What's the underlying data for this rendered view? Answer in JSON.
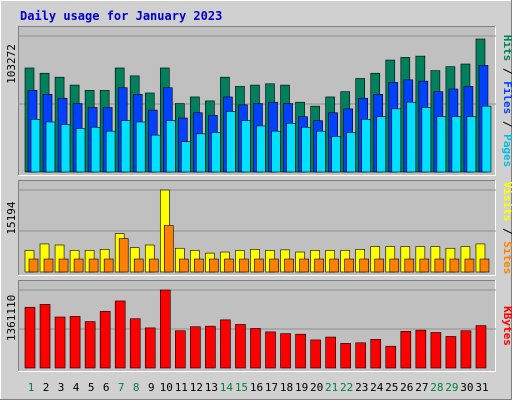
{
  "title": "Daily usage for January 2023",
  "colors": {
    "background": "#d0d0d0",
    "panel": "#c0c0c0",
    "hits": "#00805c",
    "files": "#0040ff",
    "pages": "#00e0ff",
    "visits": "#ffff00",
    "sites": "#ff8000",
    "kbytes": "#ff0000",
    "title": "#0000cc",
    "weekday": "#008040"
  },
  "chart_data": [
    {
      "type": "bar",
      "name": "hits-files-pages",
      "ymax_label": "103272",
      "ymax": 103272,
      "right_label_parts": [
        {
          "text": "Pages",
          "color": "#00c0e0"
        },
        {
          "text": " / ",
          "color": "#000000"
        },
        {
          "text": "Files",
          "color": "#0040ff"
        },
        {
          "text": " / ",
          "color": "#000000"
        },
        {
          "text": "Hits",
          "color": "#00805c"
        }
      ],
      "series": [
        {
          "key": "hits",
          "values": [
            79000,
            75000,
            72000,
            66000,
            62000,
            62000,
            79000,
            73000,
            60000,
            79000,
            52000,
            57000,
            54000,
            72000,
            65000,
            66000,
            67000,
            66000,
            53000,
            50000,
            57000,
            61000,
            71000,
            75000,
            85000,
            87000,
            88000,
            77000,
            80000,
            82000,
            101000
          ]
        },
        {
          "key": "files",
          "values": [
            62000,
            59000,
            56000,
            52000,
            49000,
            49000,
            64000,
            59000,
            47000,
            64000,
            41000,
            45000,
            43000,
            57000,
            51000,
            52000,
            53000,
            52000,
            42000,
            39000,
            45000,
            48000,
            56000,
            59000,
            68000,
            70000,
            69000,
            61000,
            63000,
            65000,
            81000
          ]
        },
        {
          "key": "pages",
          "values": [
            40000,
            38000,
            36000,
            33000,
            34000,
            31000,
            39000,
            38000,
            28000,
            39000,
            23000,
            29000,
            30000,
            46000,
            39000,
            35000,
            31000,
            37000,
            34000,
            31000,
            27000,
            30000,
            40000,
            42000,
            48000,
            53000,
            49000,
            42000,
            42000,
            42000,
            50000
          ]
        }
      ]
    },
    {
      "type": "bar",
      "name": "visits-sites",
      "ymax_label": "15194",
      "ymax": 15194,
      "right_label_parts": [
        {
          "text": "Sites",
          "color": "#ff8000"
        },
        {
          "text": " / ",
          "color": "#000000"
        },
        {
          "text": "Visits",
          "color": "#ffff00"
        }
      ],
      "series": [
        {
          "key": "visits",
          "values": [
            4000,
            5200,
            5000,
            4000,
            4000,
            4200,
            7100,
            4500,
            5000,
            15194,
            4400,
            4000,
            3500,
            3700,
            4000,
            4200,
            4000,
            4100,
            3700,
            4000,
            4000,
            4000,
            4200,
            4700,
            4700,
            4700,
            4700,
            4700,
            4400,
            4700,
            5200
          ]
        },
        {
          "key": "sites",
          "values": [
            2400,
            2400,
            2400,
            2400,
            2400,
            2400,
            6200,
            2400,
            2400,
            8600,
            2400,
            2400,
            2400,
            2400,
            2400,
            2400,
            2400,
            2400,
            2400,
            2400,
            2400,
            2400,
            2400,
            2400,
            2400,
            2400,
            2400,
            2400,
            2400,
            2400,
            2400
          ]
        }
      ]
    },
    {
      "type": "bar",
      "name": "kbytes",
      "ymax_label": "1361110",
      "ymax": 1361110,
      "right_label_parts": [
        {
          "text": "KBytes",
          "color": "#ff0000"
        }
      ],
      "series": [
        {
          "key": "kbytes",
          "values": [
            1060000,
            1110000,
            890000,
            900000,
            810000,
            990000,
            1170000,
            860000,
            700000,
            1361110,
            650000,
            720000,
            730000,
            840000,
            760000,
            690000,
            630000,
            600000,
            590000,
            490000,
            540000,
            430000,
            440000,
            500000,
            380000,
            640000,
            660000,
            620000,
            550000,
            650000,
            740000
          ]
        }
      ]
    }
  ],
  "days": [
    {
      "label": "1",
      "weekend": true
    },
    {
      "label": "2",
      "weekend": false
    },
    {
      "label": "3",
      "weekend": false
    },
    {
      "label": "4",
      "weekend": false
    },
    {
      "label": "5",
      "weekend": false
    },
    {
      "label": "6",
      "weekend": false
    },
    {
      "label": "7",
      "weekend": true
    },
    {
      "label": "8",
      "weekend": true
    },
    {
      "label": "9",
      "weekend": false
    },
    {
      "label": "10",
      "weekend": false
    },
    {
      "label": "11",
      "weekend": false
    },
    {
      "label": "12",
      "weekend": false
    },
    {
      "label": "13",
      "weekend": false
    },
    {
      "label": "14",
      "weekend": true
    },
    {
      "label": "15",
      "weekend": true
    },
    {
      "label": "16",
      "weekend": false
    },
    {
      "label": "17",
      "weekend": false
    },
    {
      "label": "18",
      "weekend": false
    },
    {
      "label": "19",
      "weekend": false
    },
    {
      "label": "20",
      "weekend": false
    },
    {
      "label": "21",
      "weekend": true
    },
    {
      "label": "22",
      "weekend": true
    },
    {
      "label": "23",
      "weekend": false
    },
    {
      "label": "24",
      "weekend": false
    },
    {
      "label": "25",
      "weekend": false
    },
    {
      "label": "26",
      "weekend": false
    },
    {
      "label": "27",
      "weekend": false
    },
    {
      "label": "28",
      "weekend": true
    },
    {
      "label": "29",
      "weekend": true
    },
    {
      "label": "30",
      "weekend": false
    },
    {
      "label": "31",
      "weekend": false
    }
  ]
}
